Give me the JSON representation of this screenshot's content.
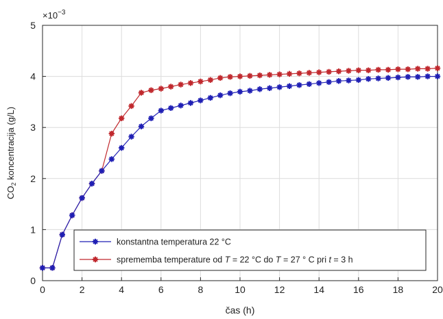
{
  "chart_data": {
    "type": "line",
    "xlabel": "čas (h)",
    "ylabel_main": "CO",
    "ylabel_sub": "2",
    "ylabel_rest": " koncentracija (g/L)",
    "y_exponent_base": "×10",
    "y_exponent_power": "−3",
    "xlim": [
      0,
      20
    ],
    "ylim": [
      0,
      5
    ],
    "x_ticks": [
      0,
      2,
      4,
      6,
      8,
      10,
      12,
      14,
      16,
      18,
      20
    ],
    "y_ticks": [
      0,
      1,
      2,
      3,
      4,
      5
    ],
    "grid": true,
    "legend_position": "bottom-right",
    "x": [
      0,
      0.5,
      1,
      1.5,
      2,
      2.5,
      3,
      3.5,
      4,
      4.5,
      5,
      5.5,
      6,
      6.5,
      7,
      7.5,
      8,
      8.5,
      9,
      9.5,
      10,
      10.5,
      11,
      11.5,
      12,
      12.5,
      13,
      13.5,
      14,
      14.5,
      15,
      15.5,
      16,
      16.5,
      17,
      17.5,
      18,
      18.5,
      19,
      19.5,
      20
    ],
    "series": [
      {
        "name": "konstantna temperatura 22 °C",
        "color": "#1f1fb4",
        "values": [
          0.25,
          0.25,
          0.9,
          1.28,
          1.62,
          1.9,
          2.15,
          2.38,
          2.6,
          2.82,
          3.02,
          3.18,
          3.33,
          3.38,
          3.43,
          3.48,
          3.53,
          3.58,
          3.63,
          3.67,
          3.7,
          3.72,
          3.75,
          3.77,
          3.79,
          3.81,
          3.83,
          3.85,
          3.87,
          3.89,
          3.91,
          3.92,
          3.93,
          3.95,
          3.96,
          3.97,
          3.98,
          3.99,
          3.99,
          4.0,
          4.0
        ]
      },
      {
        "name_parts": [
          "sprememba temperature od ",
          "T",
          " = 22 °C do ",
          "T",
          " = 27 ° C pri ",
          "t",
          " = 3 h"
        ],
        "color": "#c0282d",
        "values": [
          0.25,
          0.25,
          0.9,
          1.28,
          1.62,
          1.9,
          2.15,
          2.88,
          3.18,
          3.42,
          3.68,
          3.73,
          3.76,
          3.8,
          3.84,
          3.87,
          3.9,
          3.93,
          3.97,
          3.99,
          4.0,
          4.01,
          4.02,
          4.03,
          4.04,
          4.05,
          4.06,
          4.07,
          4.08,
          4.09,
          4.1,
          4.11,
          4.12,
          4.12,
          4.13,
          4.13,
          4.14,
          4.14,
          4.15,
          4.15,
          4.16
        ]
      }
    ]
  }
}
